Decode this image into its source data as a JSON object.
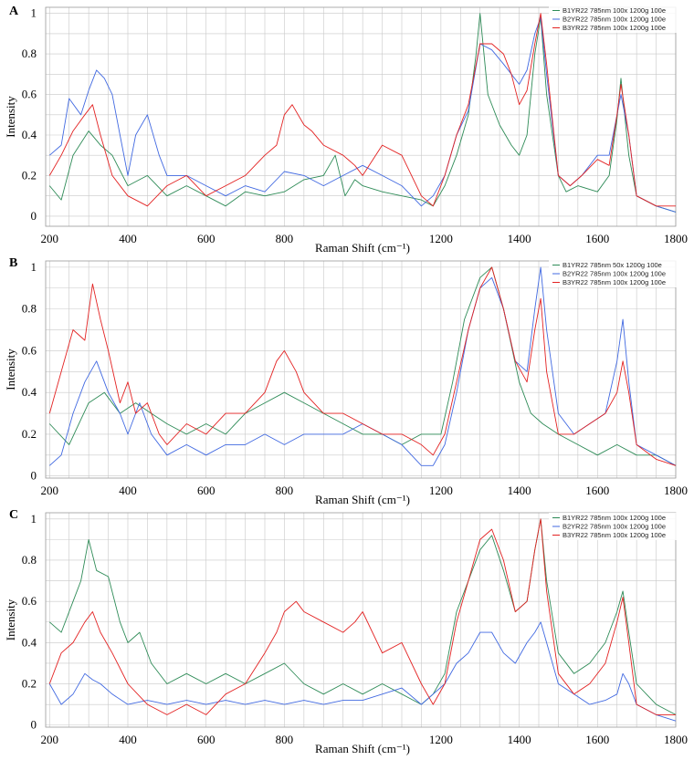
{
  "chart_data": [
    {
      "type": "line",
      "panel_label": "A",
      "xlabel": "Raman Shift (cm⁻¹)",
      "ylabel": "Intensity",
      "xlim": [
        190,
        1800
      ],
      "ylim": [
        -0.05,
        1.03
      ],
      "x_ticks": [
        200,
        400,
        600,
        800,
        1000,
        1200,
        1400,
        1600,
        1800
      ],
      "x_tick_labels": [
        "200",
        "400",
        "600",
        "800",
        "",
        "1200",
        "1400",
        "1600",
        "1800"
      ],
      "y_ticks": [
        0,
        0.2,
        0.4,
        0.6,
        0.8,
        1
      ],
      "y_tick_labels": [
        "0",
        "0.2",
        "0.4",
        "0.6",
        "0.8",
        "1"
      ],
      "grid": true,
      "legend_position": "top-right",
      "series": [
        {
          "name": "B1YR22 785nm 100x 1200g 100e",
          "color": "#2e8b57",
          "x": [
            200,
            230,
            260,
            300,
            330,
            360,
            400,
            450,
            500,
            550,
            600,
            650,
            700,
            750,
            800,
            850,
            900,
            930,
            955,
            980,
            1000,
            1050,
            1100,
            1150,
            1180,
            1210,
            1240,
            1270,
            1290,
            1300,
            1320,
            1350,
            1380,
            1400,
            1420,
            1440,
            1455,
            1470,
            1500,
            1520,
            1550,
            1600,
            1630,
            1650,
            1660,
            1680,
            1700,
            1750,
            1800
          ],
          "y": [
            0.15,
            0.08,
            0.3,
            0.42,
            0.35,
            0.3,
            0.15,
            0.2,
            0.1,
            0.15,
            0.1,
            0.05,
            0.12,
            0.1,
            0.12,
            0.18,
            0.2,
            0.3,
            0.1,
            0.18,
            0.15,
            0.12,
            0.1,
            0.08,
            0.05,
            0.15,
            0.3,
            0.5,
            0.8,
            1.0,
            0.6,
            0.45,
            0.35,
            0.3,
            0.4,
            0.8,
            0.98,
            0.6,
            0.2,
            0.12,
            0.15,
            0.12,
            0.2,
            0.48,
            0.68,
            0.3,
            0.1,
            0.05,
            0.02
          ]
        },
        {
          "name": "B2YR22 785nm 100x 1200g 100e",
          "color": "#4169e1",
          "x": [
            200,
            230,
            250,
            280,
            300,
            320,
            340,
            360,
            380,
            400,
            420,
            450,
            480,
            500,
            550,
            600,
            650,
            700,
            750,
            800,
            850,
            900,
            950,
            1000,
            1050,
            1100,
            1150,
            1180,
            1210,
            1240,
            1270,
            1300,
            1330,
            1360,
            1380,
            1400,
            1420,
            1440,
            1455,
            1470,
            1500,
            1530,
            1560,
            1600,
            1630,
            1650,
            1660,
            1680,
            1700,
            1750,
            1800
          ],
          "y": [
            0.3,
            0.35,
            0.58,
            0.5,
            0.62,
            0.72,
            0.68,
            0.6,
            0.4,
            0.2,
            0.4,
            0.5,
            0.3,
            0.2,
            0.2,
            0.15,
            0.1,
            0.15,
            0.12,
            0.22,
            0.2,
            0.15,
            0.2,
            0.25,
            0.2,
            0.15,
            0.05,
            0.1,
            0.2,
            0.4,
            0.52,
            0.85,
            0.82,
            0.75,
            0.7,
            0.65,
            0.72,
            0.9,
            0.98,
            0.7,
            0.2,
            0.15,
            0.2,
            0.3,
            0.3,
            0.5,
            0.6,
            0.4,
            0.1,
            0.05,
            0.02
          ]
        },
        {
          "name": "B3YR22 785nm 100x 1200g 100e",
          "color": "#e32222",
          "x": [
            200,
            230,
            260,
            290,
            310,
            330,
            360,
            400,
            450,
            500,
            550,
            600,
            650,
            700,
            750,
            780,
            800,
            820,
            850,
            870,
            900,
            950,
            980,
            1000,
            1050,
            1100,
            1150,
            1180,
            1210,
            1240,
            1270,
            1300,
            1330,
            1360,
            1380,
            1400,
            1420,
            1440,
            1455,
            1470,
            1500,
            1530,
            1560,
            1600,
            1630,
            1650,
            1660,
            1680,
            1700,
            1750,
            1800
          ],
          "y": [
            0.2,
            0.3,
            0.42,
            0.5,
            0.55,
            0.4,
            0.2,
            0.1,
            0.05,
            0.15,
            0.2,
            0.1,
            0.15,
            0.2,
            0.3,
            0.35,
            0.5,
            0.55,
            0.45,
            0.42,
            0.35,
            0.3,
            0.25,
            0.2,
            0.35,
            0.3,
            0.1,
            0.05,
            0.2,
            0.4,
            0.55,
            0.85,
            0.85,
            0.8,
            0.7,
            0.55,
            0.62,
            0.85,
            1.0,
            0.75,
            0.2,
            0.15,
            0.2,
            0.28,
            0.25,
            0.5,
            0.65,
            0.4,
            0.1,
            0.05,
            0.05
          ]
        }
      ]
    },
    {
      "type": "line",
      "panel_label": "B",
      "xlabel": "Raman Shift (cm⁻¹)",
      "ylabel": "Intensity",
      "xlim": [
        190,
        1800
      ],
      "ylim": [
        -0.01,
        1.03
      ],
      "x_ticks": [
        200,
        400,
        600,
        800,
        1000,
        1200,
        1400,
        1600,
        1800
      ],
      "x_tick_labels": [
        "200",
        "400",
        "600",
        "800",
        "",
        "1200",
        "1400",
        "1600",
        "1800"
      ],
      "y_ticks": [
        0,
        0.2,
        0.4,
        0.6,
        0.8,
        1
      ],
      "y_tick_labels": [
        "0",
        "0.2",
        "0.4",
        "0.6",
        "0.8",
        "1"
      ],
      "grid": true,
      "legend_position": "top-right",
      "series": [
        {
          "name": "B1YR22 785nm 50x 1200g 100e",
          "color": "#2e8b57",
          "x": [
            200,
            250,
            300,
            340,
            380,
            420,
            460,
            500,
            550,
            600,
            650,
            700,
            750,
            800,
            850,
            900,
            950,
            1000,
            1050,
            1100,
            1150,
            1200,
            1230,
            1260,
            1300,
            1330,
            1360,
            1400,
            1430,
            1460,
            1500,
            1550,
            1600,
            1650,
            1700,
            1750,
            1800
          ],
          "y": [
            0.25,
            0.15,
            0.35,
            0.4,
            0.3,
            0.35,
            0.3,
            0.25,
            0.2,
            0.25,
            0.2,
            0.3,
            0.35,
            0.4,
            0.35,
            0.3,
            0.25,
            0.2,
            0.2,
            0.15,
            0.2,
            0.2,
            0.45,
            0.75,
            0.95,
            1.0,
            0.8,
            0.45,
            0.3,
            0.25,
            0.2,
            0.15,
            0.1,
            0.15,
            0.1,
            0.1,
            0.05
          ]
        },
        {
          "name": "B2YR22 785nm 100x 1200g 100e",
          "color": "#4169e1",
          "x": [
            200,
            230,
            260,
            290,
            320,
            350,
            380,
            400,
            430,
            460,
            500,
            550,
            600,
            650,
            700,
            750,
            800,
            850,
            900,
            950,
            1000,
            1050,
            1100,
            1150,
            1180,
            1210,
            1240,
            1270,
            1300,
            1330,
            1360,
            1390,
            1420,
            1440,
            1455,
            1470,
            1500,
            1540,
            1580,
            1620,
            1650,
            1665,
            1680,
            1700,
            1750,
            1800
          ],
          "y": [
            0.05,
            0.1,
            0.3,
            0.45,
            0.55,
            0.4,
            0.3,
            0.2,
            0.35,
            0.2,
            0.1,
            0.15,
            0.1,
            0.15,
            0.15,
            0.2,
            0.15,
            0.2,
            0.2,
            0.2,
            0.25,
            0.2,
            0.15,
            0.05,
            0.05,
            0.15,
            0.4,
            0.7,
            0.9,
            0.95,
            0.8,
            0.55,
            0.5,
            0.8,
            1.0,
            0.7,
            0.3,
            0.2,
            0.25,
            0.3,
            0.55,
            0.75,
            0.45,
            0.15,
            0.1,
            0.05
          ]
        },
        {
          "name": "B3YR22 785nm 100x 1200g 100e",
          "color": "#e32222",
          "x": [
            200,
            230,
            260,
            290,
            310,
            330,
            350,
            380,
            400,
            420,
            450,
            480,
            500,
            550,
            600,
            650,
            700,
            750,
            780,
            800,
            830,
            850,
            900,
            950,
            1000,
            1050,
            1100,
            1150,
            1180,
            1210,
            1240,
            1270,
            1300,
            1330,
            1360,
            1390,
            1420,
            1440,
            1455,
            1470,
            1500,
            1540,
            1580,
            1620,
            1650,
            1665,
            1680,
            1700,
            1750,
            1800
          ],
          "y": [
            0.3,
            0.5,
            0.7,
            0.65,
            0.92,
            0.75,
            0.6,
            0.35,
            0.45,
            0.3,
            0.35,
            0.2,
            0.15,
            0.25,
            0.2,
            0.3,
            0.3,
            0.4,
            0.55,
            0.6,
            0.5,
            0.4,
            0.3,
            0.3,
            0.25,
            0.2,
            0.2,
            0.15,
            0.1,
            0.2,
            0.45,
            0.7,
            0.9,
            1.0,
            0.8,
            0.55,
            0.45,
            0.7,
            0.85,
            0.5,
            0.2,
            0.2,
            0.25,
            0.3,
            0.4,
            0.55,
            0.4,
            0.15,
            0.08,
            0.05
          ]
        }
      ]
    },
    {
      "type": "line",
      "panel_label": "C",
      "xlabel": "Raman Shift (cm⁻¹)",
      "ylabel": "Intensity",
      "xlim": [
        190,
        1800
      ],
      "ylim": [
        -0.01,
        1.03
      ],
      "x_ticks": [
        200,
        400,
        600,
        800,
        1000,
        1200,
        1400,
        1600,
        1800
      ],
      "x_tick_labels": [
        "200",
        "400",
        "600",
        "800",
        "",
        "1200",
        "1400",
        "1600",
        "1800"
      ],
      "y_ticks": [
        0,
        0.2,
        0.4,
        0.6,
        0.8,
        1
      ],
      "y_tick_labels": [
        "0",
        "0.2",
        "0.4",
        "0.6",
        "0.8",
        "1"
      ],
      "grid": true,
      "legend_position": "top-right",
      "series": [
        {
          "name": "B1YR22 785nm 100x 1200g 100e",
          "color": "#2e8b57",
          "x": [
            200,
            230,
            260,
            280,
            300,
            320,
            350,
            380,
            400,
            430,
            460,
            500,
            550,
            600,
            650,
            700,
            750,
            800,
            850,
            900,
            950,
            1000,
            1050,
            1100,
            1150,
            1180,
            1210,
            1240,
            1270,
            1300,
            1330,
            1360,
            1390,
            1420,
            1440,
            1455,
            1470,
            1500,
            1540,
            1580,
            1620,
            1650,
            1665,
            1680,
            1700,
            1750,
            1800
          ],
          "y": [
            0.5,
            0.45,
            0.6,
            0.7,
            0.9,
            0.75,
            0.72,
            0.5,
            0.4,
            0.45,
            0.3,
            0.2,
            0.25,
            0.2,
            0.25,
            0.2,
            0.25,
            0.3,
            0.2,
            0.15,
            0.2,
            0.15,
            0.2,
            0.15,
            0.1,
            0.15,
            0.25,
            0.55,
            0.7,
            0.85,
            0.92,
            0.75,
            0.55,
            0.6,
            0.85,
            1.0,
            0.7,
            0.35,
            0.25,
            0.3,
            0.4,
            0.55,
            0.65,
            0.45,
            0.2,
            0.1,
            0.05
          ]
        },
        {
          "name": "B2YR22 785nm 100x 1200g 100e",
          "color": "#4169e1",
          "x": [
            200,
            230,
            260,
            290,
            310,
            330,
            360,
            400,
            450,
            500,
            550,
            600,
            650,
            700,
            750,
            800,
            850,
            900,
            950,
            1000,
            1050,
            1100,
            1150,
            1180,
            1210,
            1240,
            1270,
            1300,
            1330,
            1360,
            1390,
            1420,
            1440,
            1455,
            1470,
            1500,
            1540,
            1580,
            1620,
            1650,
            1665,
            1680,
            1700,
            1750,
            1800
          ],
          "y": [
            0.2,
            0.1,
            0.15,
            0.25,
            0.22,
            0.2,
            0.15,
            0.1,
            0.12,
            0.1,
            0.12,
            0.1,
            0.12,
            0.1,
            0.12,
            0.1,
            0.12,
            0.1,
            0.12,
            0.12,
            0.15,
            0.18,
            0.1,
            0.15,
            0.2,
            0.3,
            0.35,
            0.45,
            0.45,
            0.35,
            0.3,
            0.4,
            0.45,
            0.5,
            0.4,
            0.2,
            0.15,
            0.1,
            0.12,
            0.15,
            0.25,
            0.2,
            0.1,
            0.05,
            0.02
          ]
        },
        {
          "name": "B3YR22 785nm 100x 1200g 100e",
          "color": "#e32222",
          "x": [
            200,
            230,
            260,
            290,
            310,
            330,
            360,
            400,
            450,
            500,
            550,
            600,
            650,
            700,
            750,
            780,
            800,
            830,
            850,
            900,
            950,
            980,
            1000,
            1050,
            1100,
            1150,
            1180,
            1210,
            1240,
            1270,
            1300,
            1330,
            1360,
            1390,
            1420,
            1440,
            1455,
            1470,
            1500,
            1540,
            1580,
            1620,
            1650,
            1665,
            1680,
            1700,
            1750,
            1800
          ],
          "y": [
            0.2,
            0.35,
            0.4,
            0.5,
            0.55,
            0.45,
            0.35,
            0.2,
            0.1,
            0.05,
            0.1,
            0.05,
            0.15,
            0.2,
            0.35,
            0.45,
            0.55,
            0.6,
            0.55,
            0.5,
            0.45,
            0.5,
            0.55,
            0.35,
            0.4,
            0.2,
            0.1,
            0.2,
            0.5,
            0.7,
            0.9,
            0.95,
            0.8,
            0.55,
            0.6,
            0.85,
            1.0,
            0.65,
            0.25,
            0.15,
            0.2,
            0.3,
            0.5,
            0.62,
            0.4,
            0.1,
            0.05,
            0.05
          ]
        }
      ]
    }
  ]
}
